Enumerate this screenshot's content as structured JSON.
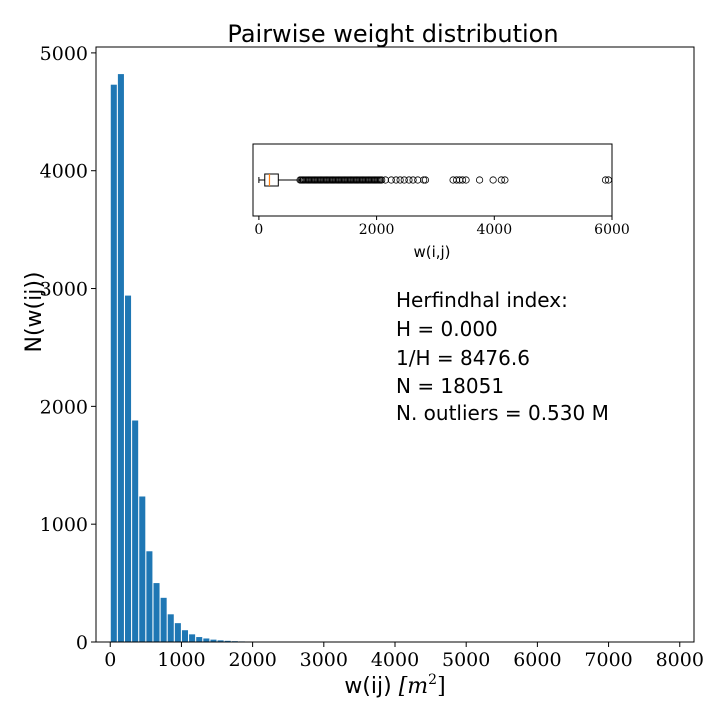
{
  "chart_data": {
    "type": "bar",
    "title": "Pairwise weight distribution",
    "xlabel": "w(ij) [m²]",
    "xlabel_text": "w(ij) ",
    "xlabel_unit": "[m",
    "xlabel_unit_sup": "2",
    "xlabel_unit_close": "]",
    "ylabel": "N(w(ij))",
    "xlim": [
      -200,
      8200
    ],
    "ylim": [
      0,
      5050
    ],
    "x_ticks": [
      0,
      1000,
      2000,
      3000,
      4000,
      5000,
      6000,
      7000,
      8000
    ],
    "y_ticks": [
      0,
      1000,
      2000,
      3000,
      4000,
      5000
    ],
    "bar_width": 85,
    "bar_color": "#1f77b4",
    "x": [
      50,
      150,
      250,
      350,
      450,
      550,
      650,
      750,
      850,
      950,
      1050,
      1150,
      1250,
      1350,
      1450,
      1550,
      1650,
      1750,
      1850,
      1950
    ],
    "values": [
      4730,
      4820,
      2940,
      1880,
      1235,
      770,
      500,
      375,
      235,
      160,
      100,
      65,
      42,
      30,
      20,
      14,
      10,
      7,
      5,
      3
    ],
    "annotation": [
      "Herfindhal index:",
      "H = 0.000",
      "1/H = 8476.6",
      "N = 18051",
      "N. outliers = 0.530 M"
    ],
    "inset": {
      "type": "boxplot",
      "xlabel": "w(i,j)",
      "xlim": [
        -100,
        6000
      ],
      "x_ticks": [
        0,
        2000,
        4000,
        6000
      ],
      "box": {
        "whisker_low": 0,
        "q1": 100,
        "median": 180,
        "q3": 330,
        "whisker_high": 700
      },
      "median_color": "#ff7f0e",
      "outliers_dense_range": [
        700,
        2100
      ],
      "outliers": [
        2150,
        2250,
        2330,
        2400,
        2470,
        2550,
        2620,
        2700,
        2800,
        2830,
        3300,
        3360,
        3410,
        3460,
        3520,
        3750,
        3980,
        4120,
        4180,
        5890,
        5940
      ]
    }
  }
}
